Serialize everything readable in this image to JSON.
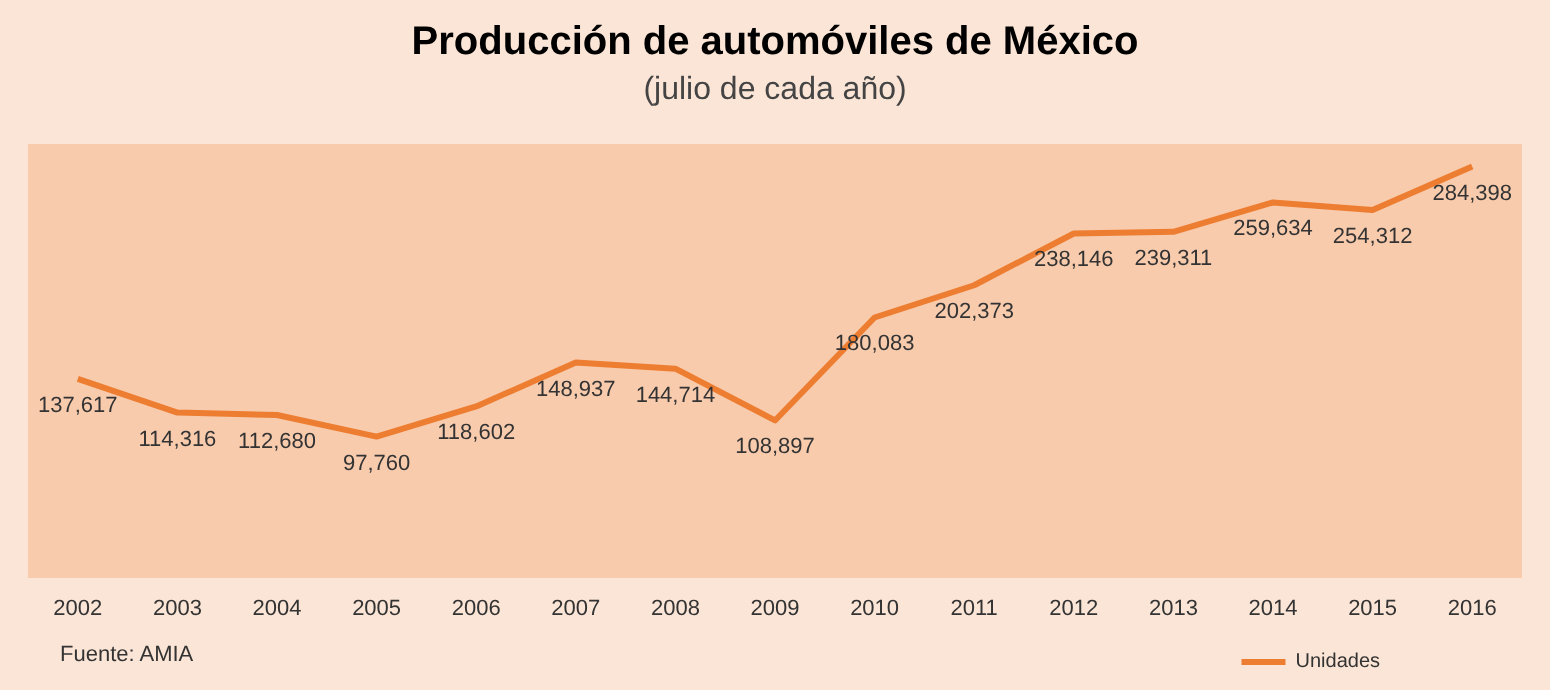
{
  "chart_data": {
    "type": "line",
    "title": "Producción de automóviles de México",
    "subtitle": "(julio de cada año)",
    "categories": [
      "2002",
      "2003",
      "2004",
      "2005",
      "2006",
      "2007",
      "2008",
      "2009",
      "2010",
      "2011",
      "2012",
      "2013",
      "2014",
      "2015",
      "2016"
    ],
    "series": [
      {
        "name": "Unidades",
        "color": "#ed7d31",
        "values": [
          137617,
          114316,
          112680,
          97760,
          118602,
          148937,
          144714,
          108897,
          180083,
          202373,
          238146,
          239311,
          259634,
          254312,
          284398
        ],
        "value_labels": [
          "137,617",
          "114,316",
          "112,680",
          "97,760",
          "118,602",
          "148,937",
          "144,714",
          "108,897",
          "180,083",
          "202,373",
          "238,146",
          "239,311",
          "259,634",
          "254,312",
          "284,398"
        ]
      }
    ],
    "legend": "bottom right",
    "marker": "none",
    "line_style": "solid",
    "annotations": [
      "Fuente: AMIA"
    ]
  }
}
